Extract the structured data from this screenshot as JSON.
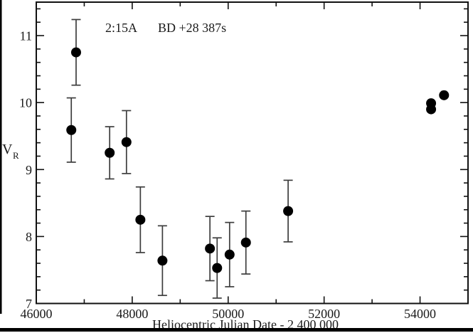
{
  "figure": {
    "title_left": "2:15A",
    "title_right": "BD +28 387s",
    "y_axis_label_main": "V",
    "y_axis_label_sub": "R",
    "x_axis_label": "Heliocentric Julian Date - 2 400 000"
  },
  "chart_data": {
    "type": "scatter",
    "title": "2:15A  BD +28 387s",
    "xlabel": "Heliocentric Julian Date - 2 400 000",
    "ylabel": "V_R",
    "xlim": [
      46000,
      55000
    ],
    "ylim": [
      7,
      11.5
    ],
    "grid": false,
    "legend": "none",
    "marker": "filled-circle",
    "x_major_ticks": [
      46000,
      48000,
      50000,
      52000,
      54000
    ],
    "x_minor_step": 1000,
    "y_major_ticks": [
      7,
      8,
      9,
      10,
      11
    ],
    "y_minor_step": 0.2,
    "colors": {
      "marker": "#000000",
      "errorbar": "#3d3d3d",
      "axis": "#111111",
      "background": "#ffffff"
    },
    "points": [
      {
        "x": 46730,
        "y": 9.59,
        "err": 0.48
      },
      {
        "x": 46830,
        "y": 10.75,
        "err": 0.49
      },
      {
        "x": 47530,
        "y": 9.25,
        "err": 0.39
      },
      {
        "x": 47880,
        "y": 9.41,
        "err": 0.47
      },
      {
        "x": 48170,
        "y": 8.25,
        "err": 0.49
      },
      {
        "x": 48630,
        "y": 7.64,
        "err": 0.52
      },
      {
        "x": 49620,
        "y": 7.82,
        "err": 0.48
      },
      {
        "x": 49770,
        "y": 7.53,
        "err": 0.45
      },
      {
        "x": 50030,
        "y": 7.73,
        "err": 0.48
      },
      {
        "x": 50370,
        "y": 7.91,
        "err": 0.47
      },
      {
        "x": 51250,
        "y": 8.38,
        "err": 0.46
      },
      {
        "x": 54230,
        "y": 9.99,
        "err": 0
      },
      {
        "x": 54230,
        "y": 9.9,
        "err": 0
      },
      {
        "x": 54500,
        "y": 10.11,
        "err": 0
      }
    ]
  }
}
